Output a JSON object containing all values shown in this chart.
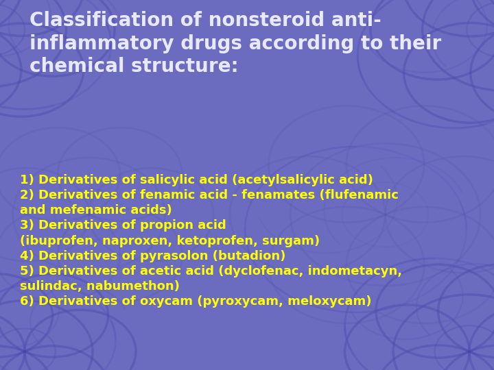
{
  "background_color": "#6b6bbf",
  "title_text": "Classification of nonsteroid anti-\ninflammatory drugs according to their\nchemical structure:",
  "title_color": "#e8e8ff",
  "title_fontsize": 20,
  "title_bold": true,
  "body_lines": [
    "1) Derivatives of salicylic acid (acetylsalicylic acid)",
    "2) Derivatives of fenamic acid - fenamates (flufenamic\nand mefenamic acids)",
    "3) Derivatives of propion acid\n(ibuprofen, naproxen, ketoprofen, surgam)",
    "4) Derivatives of pyrasolon (butadion)",
    "5) Derivatives of acetic acid (dyclofenac, indometacyn,\nsulindac, nabumethon)",
    "6) Derivatives of oxycam (pyroxycam, meloxycam)"
  ],
  "body_color": "#ffff00",
  "body_fontsize": 13,
  "body_bold": true,
  "fig_width": 7.2,
  "fig_height": 5.4,
  "dpi": 100
}
